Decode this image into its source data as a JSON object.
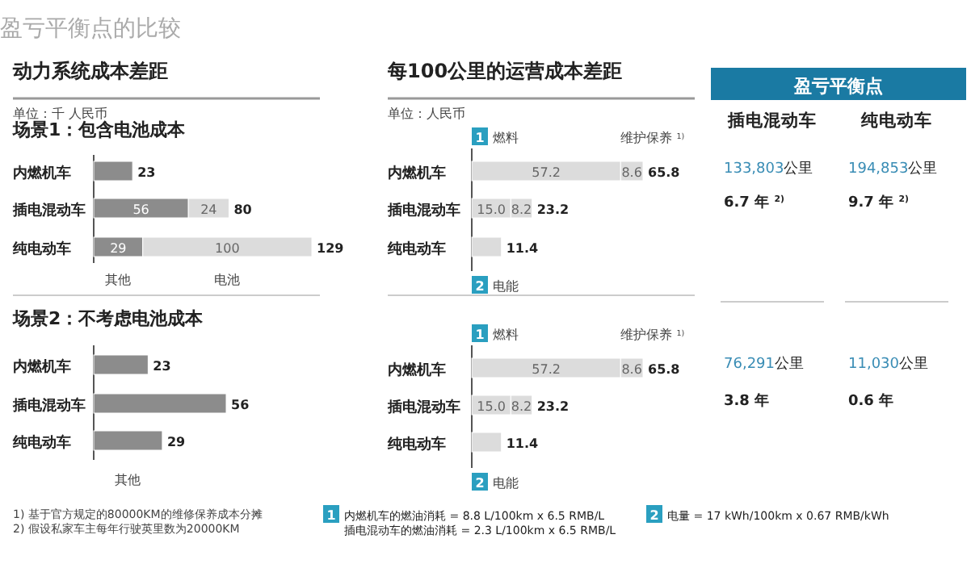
{
  "chart_data": [
    {
      "type": "bar",
      "orientation": "horizontal",
      "stacked": true,
      "title": "动力系统成本差距",
      "subtitle": "场景1：包含电池成本",
      "annotations": [
        "盈亏平衡点的比较",
        "单位：千 人民币"
      ],
      "categories": [
        "内燃机车",
        "插电混动车",
        "纯电动车"
      ],
      "legend": "bottom",
      "totals": [
        "23",
        "80",
        "129"
      ],
      "series": [
        {
          "name": "其他",
          "color": "#8c8c8c",
          "values": [
            23,
            56,
            29
          ],
          "value_labels": [
            null,
            "56",
            "29"
          ]
        },
        {
          "name": "电池",
          "color": "#dcdcdc",
          "values": [
            null,
            24,
            100
          ],
          "value_labels": [
            null,
            "24",
            "100"
          ]
        }
      ]
    },
    {
      "type": "bar",
      "orientation": "horizontal",
      "title": "场景2：不考虑电池成本",
      "annotations": [
        "1) 基于官方规定的80000KM的维修保养成本分摊",
        "2) 假设私家车主每年行驶英里数为20000KM"
      ],
      "categories": [
        "内燃机车",
        "插电混动车",
        "纯电动车"
      ],
      "legend": "bottom",
      "data_labels": true,
      "series": [
        {
          "name": "其他",
          "color": "#8c8c8c",
          "values": [
            23,
            56,
            29
          ]
        }
      ]
    },
    {
      "type": "bar",
      "orientation": "horizontal",
      "stacked": true,
      "title": "每100公里的运营成本差距",
      "annotations": [
        "单位：人民币"
      ],
      "categories": [
        "内燃机车",
        "插电混动车",
        "纯电动车"
      ],
      "totals": [
        "65.8",
        "23.2",
        "11.4"
      ],
      "series": [
        {
          "name": "1 燃料",
          "color": "#dcdcdc",
          "values": [
            57.2,
            15.0,
            null
          ],
          "value_labels": [
            "57.2",
            "15.0",
            null
          ]
        },
        {
          "name": "维护保养 $^{1)}$",
          "color": "#dcdcdc",
          "values": [
            8.6,
            8.2,
            null
          ],
          "value_labels": [
            "8.6",
            "8.2",
            null
          ]
        },
        {
          "name": "2 电能",
          "color": "#dcdcdc",
          "values": [
            null,
            null,
            11.4
          ]
        }
      ]
    },
    {
      "type": "bar",
      "orientation": "horizontal",
      "stacked": true,
      "annotations": [
        "1 内燃机车的燃油消耗 = 8.8 L/100km x 6.5 RMB/L",
        "插电混动车的燃油消耗 = 2.3 L/100km x 6.5 RMB/L",
        "2 电量 = 17 kWh/100km x 0.67 RMB/kWh"
      ],
      "categories": [
        "内燃机车",
        "插电混动车",
        "纯电动车"
      ],
      "totals": [
        "65.8",
        "23.2",
        "11.4"
      ],
      "series": [
        {
          "name": "1 燃料",
          "color": "#dcdcdc",
          "values": [
            57.2,
            15.0,
            null
          ],
          "value_labels": [
            "57.2",
            "15.0",
            null
          ]
        },
        {
          "name": "维护保养 $^{1)}$",
          "color": "#dcdcdc",
          "values": [
            8.6,
            8.2,
            null
          ],
          "value_labels": [
            "8.6",
            "8.2",
            null
          ]
        },
        {
          "name": "2 电能",
          "color": "#dcdcdc",
          "values": [
            null,
            null,
            11.4
          ]
        }
      ]
    },
    {
      "type": "other",
      "title": "盈亏平衡点",
      "categories": [
        "插电混动车",
        "纯电动车"
      ],
      "annotations": [
        "133,803公里",
        "194,853公里",
        "6.7 年 $^{2)}$",
        "9.7 年 $^{2)}$",
        "76,291公里",
        "11,030公里",
        "3.8 年",
        "0.6 年"
      ]
    }
  ]
}
